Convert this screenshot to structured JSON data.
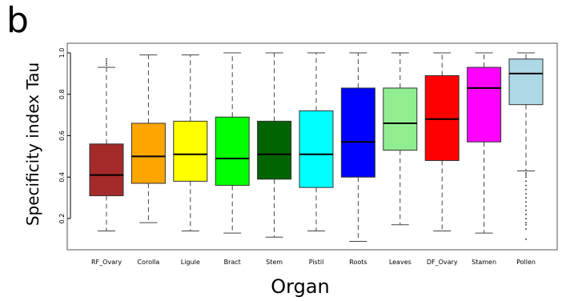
{
  "panel_label": "b",
  "chart_data": {
    "type": "boxplot",
    "xlabel": "Organ",
    "ylabel": "Specificity index Tau",
    "ylim": [
      0.05,
      1.0
    ],
    "yticks": [
      0.2,
      0.4,
      0.6,
      0.8,
      1.0
    ],
    "ytick_labels": [
      "0.2",
      "0.4",
      "0.6",
      "0.8",
      "1.0"
    ],
    "grid": false,
    "categories": [
      "RF_Ovary",
      "Corolla",
      "Ligule",
      "Bract",
      "Stem",
      "Pistil",
      "Roots",
      "Leaves",
      "DF_Ovary",
      "Stamen",
      "Pollen"
    ],
    "boxes": [
      {
        "category": "RF_Ovary",
        "color": "#a52a2a",
        "whisker_low": 0.14,
        "q1": 0.31,
        "median": 0.41,
        "q3": 0.56,
        "whisker_high": 0.93,
        "outliers_high": [
          0.94,
          0.95,
          0.96,
          0.97
        ]
      },
      {
        "category": "Corolla",
        "color": "#ffa500",
        "whisker_low": 0.18,
        "q1": 0.37,
        "median": 0.5,
        "q3": 0.66,
        "whisker_high": 0.99
      },
      {
        "category": "Ligule",
        "color": "#ffff00",
        "whisker_low": 0.14,
        "q1": 0.38,
        "median": 0.51,
        "q3": 0.67,
        "whisker_high": 0.99
      },
      {
        "category": "Bract",
        "color": "#00ff00",
        "whisker_low": 0.13,
        "q1": 0.36,
        "median": 0.49,
        "q3": 0.69,
        "whisker_high": 1.0
      },
      {
        "category": "Stem",
        "color": "#006400",
        "whisker_low": 0.11,
        "q1": 0.39,
        "median": 0.51,
        "q3": 0.67,
        "whisker_high": 1.0
      },
      {
        "category": "Pistil",
        "color": "#00ffff",
        "whisker_low": 0.14,
        "q1": 0.35,
        "median": 0.51,
        "q3": 0.72,
        "whisker_high": 1.0
      },
      {
        "category": "Roots",
        "color": "#0000ff",
        "whisker_low": 0.09,
        "q1": 0.4,
        "median": 0.57,
        "q3": 0.83,
        "whisker_high": 1.0
      },
      {
        "category": "Leaves",
        "color": "#90ee90",
        "whisker_low": 0.17,
        "q1": 0.53,
        "median": 0.66,
        "q3": 0.83,
        "whisker_high": 1.0
      },
      {
        "category": "DF_Ovary",
        "color": "#ff0000",
        "whisker_low": 0.14,
        "q1": 0.48,
        "median": 0.68,
        "q3": 0.89,
        "whisker_high": 1.0
      },
      {
        "category": "Stamen",
        "color": "#ff00ff",
        "whisker_low": 0.13,
        "q1": 0.57,
        "median": 0.83,
        "q3": 0.93,
        "whisker_high": 1.0
      },
      {
        "category": "Pollen",
        "color": "#add8e6",
        "whisker_low": 0.43,
        "q1": 0.75,
        "median": 0.9,
        "q3": 0.97,
        "whisker_high": 1.0,
        "outliers_low": [
          0.1,
          0.15,
          0.17,
          0.18,
          0.2,
          0.22,
          0.24,
          0.26,
          0.28,
          0.3,
          0.32,
          0.34,
          0.36,
          0.38,
          0.4,
          0.41,
          0.42
        ]
      }
    ]
  }
}
